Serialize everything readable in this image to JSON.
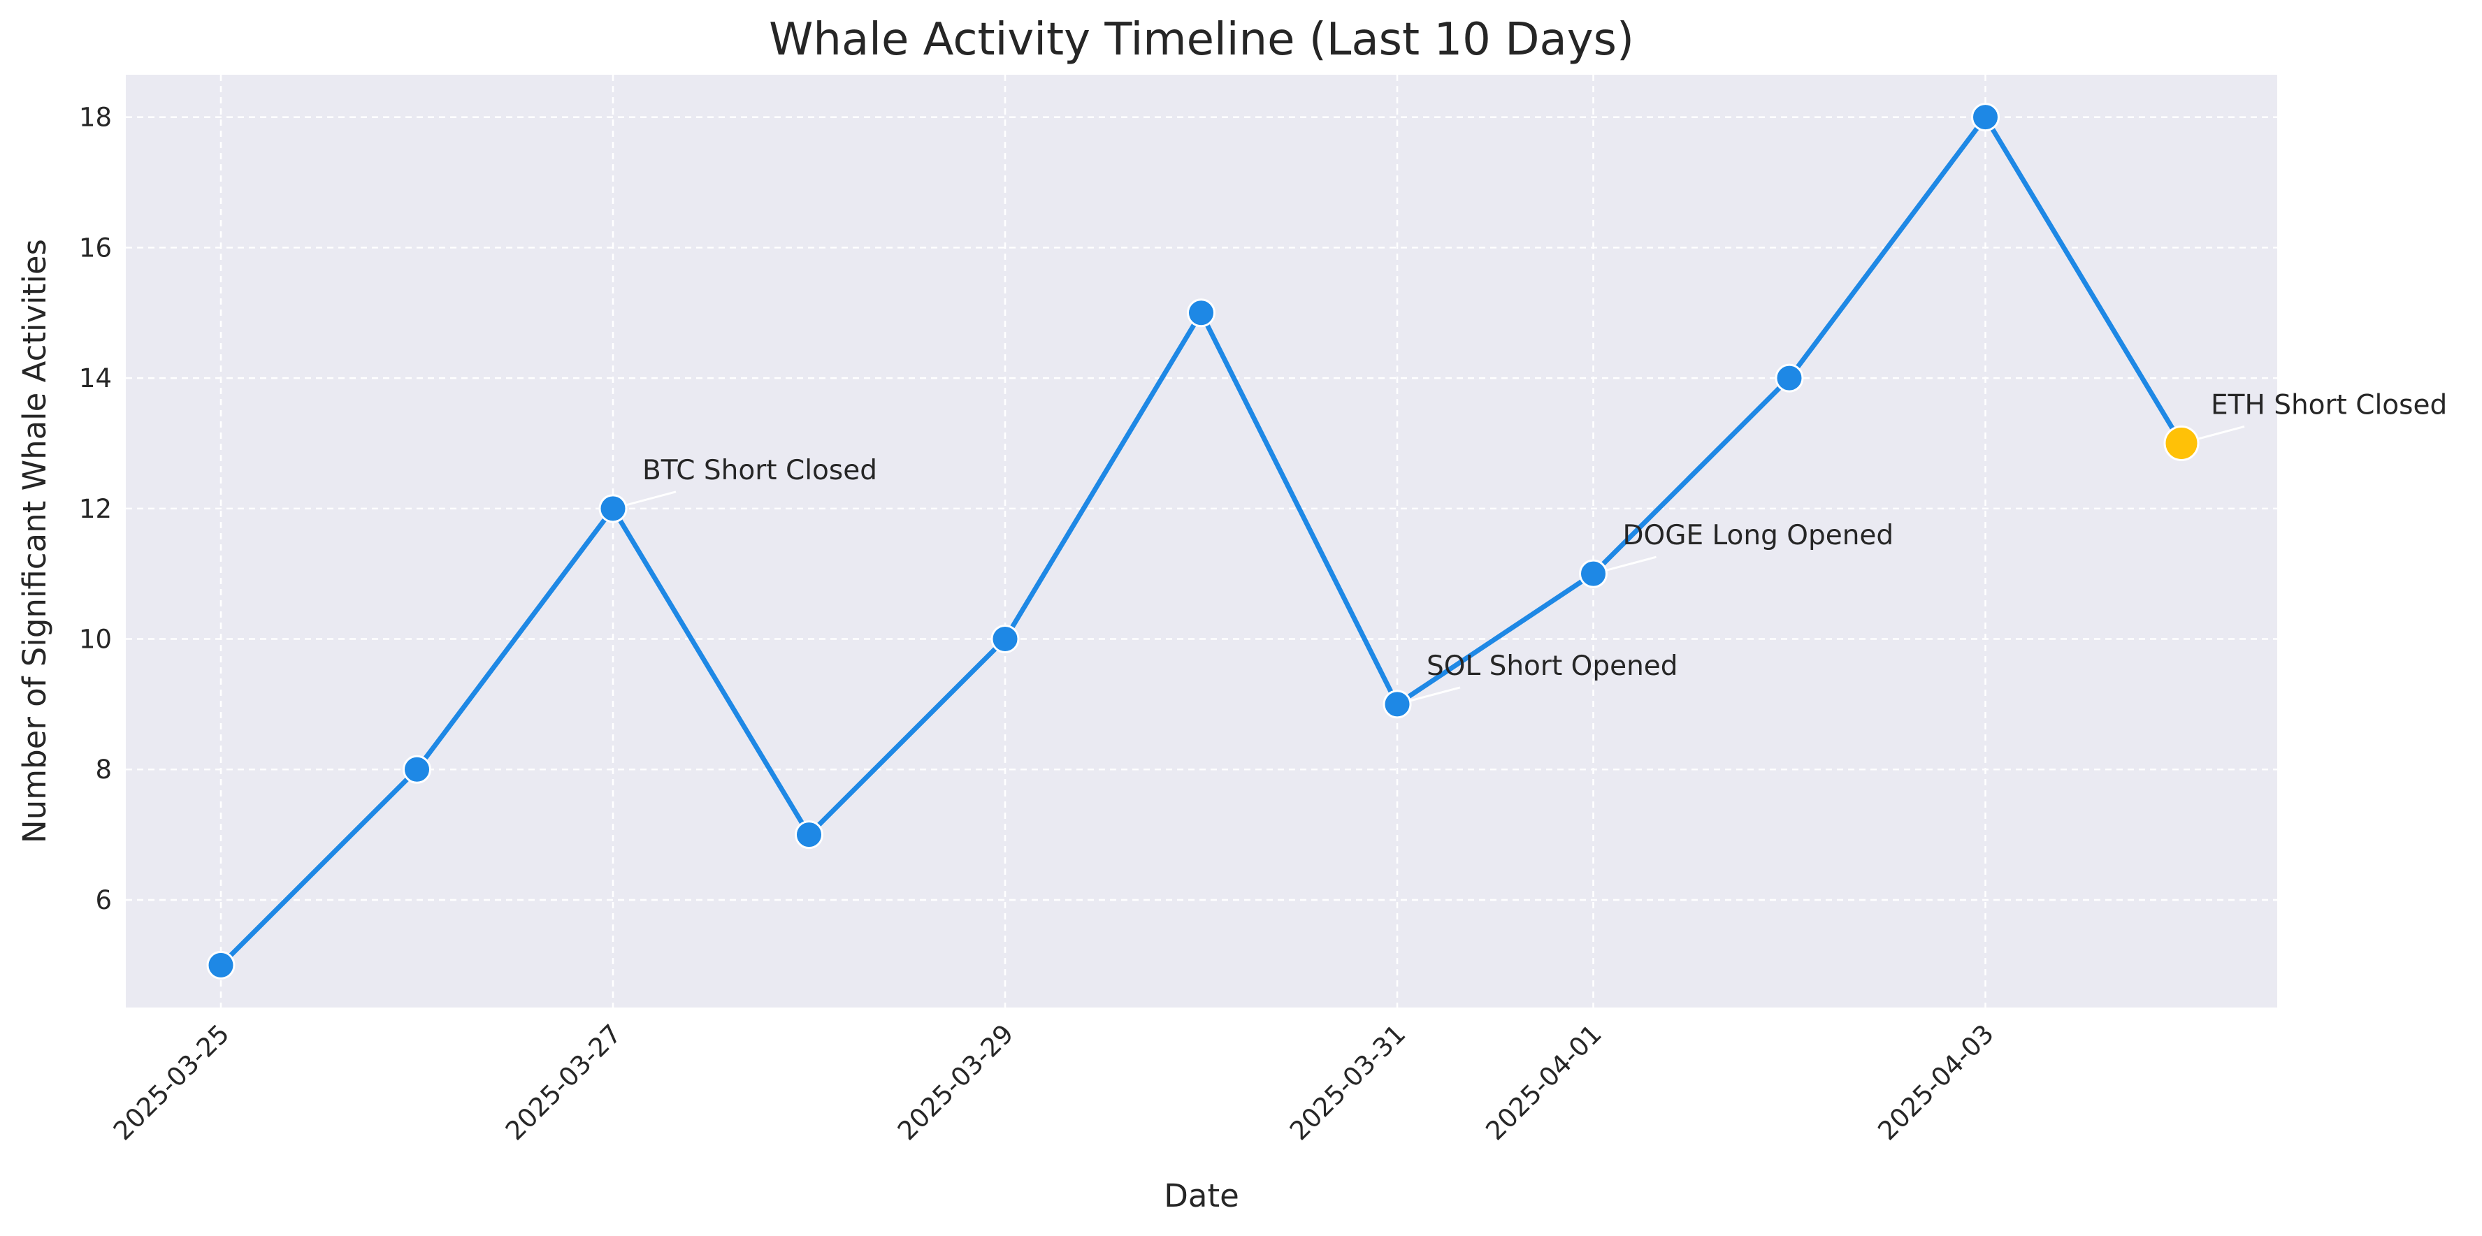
{
  "chart_data": {
    "type": "line",
    "title": "Whale Activity Timeline (Last 10 Days)",
    "xlabel": "Date",
    "ylabel": "Number of Significant Whale Activities",
    "x": [
      "2025-03-25",
      "2025-03-26",
      "2025-03-27",
      "2025-03-28",
      "2025-03-29",
      "2025-03-30",
      "2025-03-31",
      "2025-04-01",
      "2025-04-02",
      "2025-04-03",
      "2025-04-04"
    ],
    "xticks": [
      "2025-03-25",
      "2025-03-27",
      "2025-03-29",
      "2025-03-31",
      "2025-04-01",
      "2025-04-03"
    ],
    "y": [
      5,
      8,
      12,
      7,
      10,
      15,
      9,
      11,
      14,
      18,
      13
    ],
    "ylim": [
      4.35,
      18.65
    ],
    "yticks": [
      6,
      8,
      10,
      12,
      14,
      16,
      18
    ],
    "grid": true,
    "line_color": "#1e88e5",
    "highlight_color": "#ffc107",
    "background_color": "#eaeaf2",
    "highlight_date": "2025-04-04",
    "annotations": [
      {
        "date": "2025-03-27",
        "value": 12,
        "text": "BTC Short Closed"
      },
      {
        "date": "2025-03-31",
        "value": 9,
        "text": "SOL Short Opened"
      },
      {
        "date": "2025-04-01",
        "value": 11,
        "text": "DOGE Long Opened"
      },
      {
        "date": "2025-04-04",
        "value": 13,
        "text": "ETH Short Closed"
      }
    ]
  }
}
